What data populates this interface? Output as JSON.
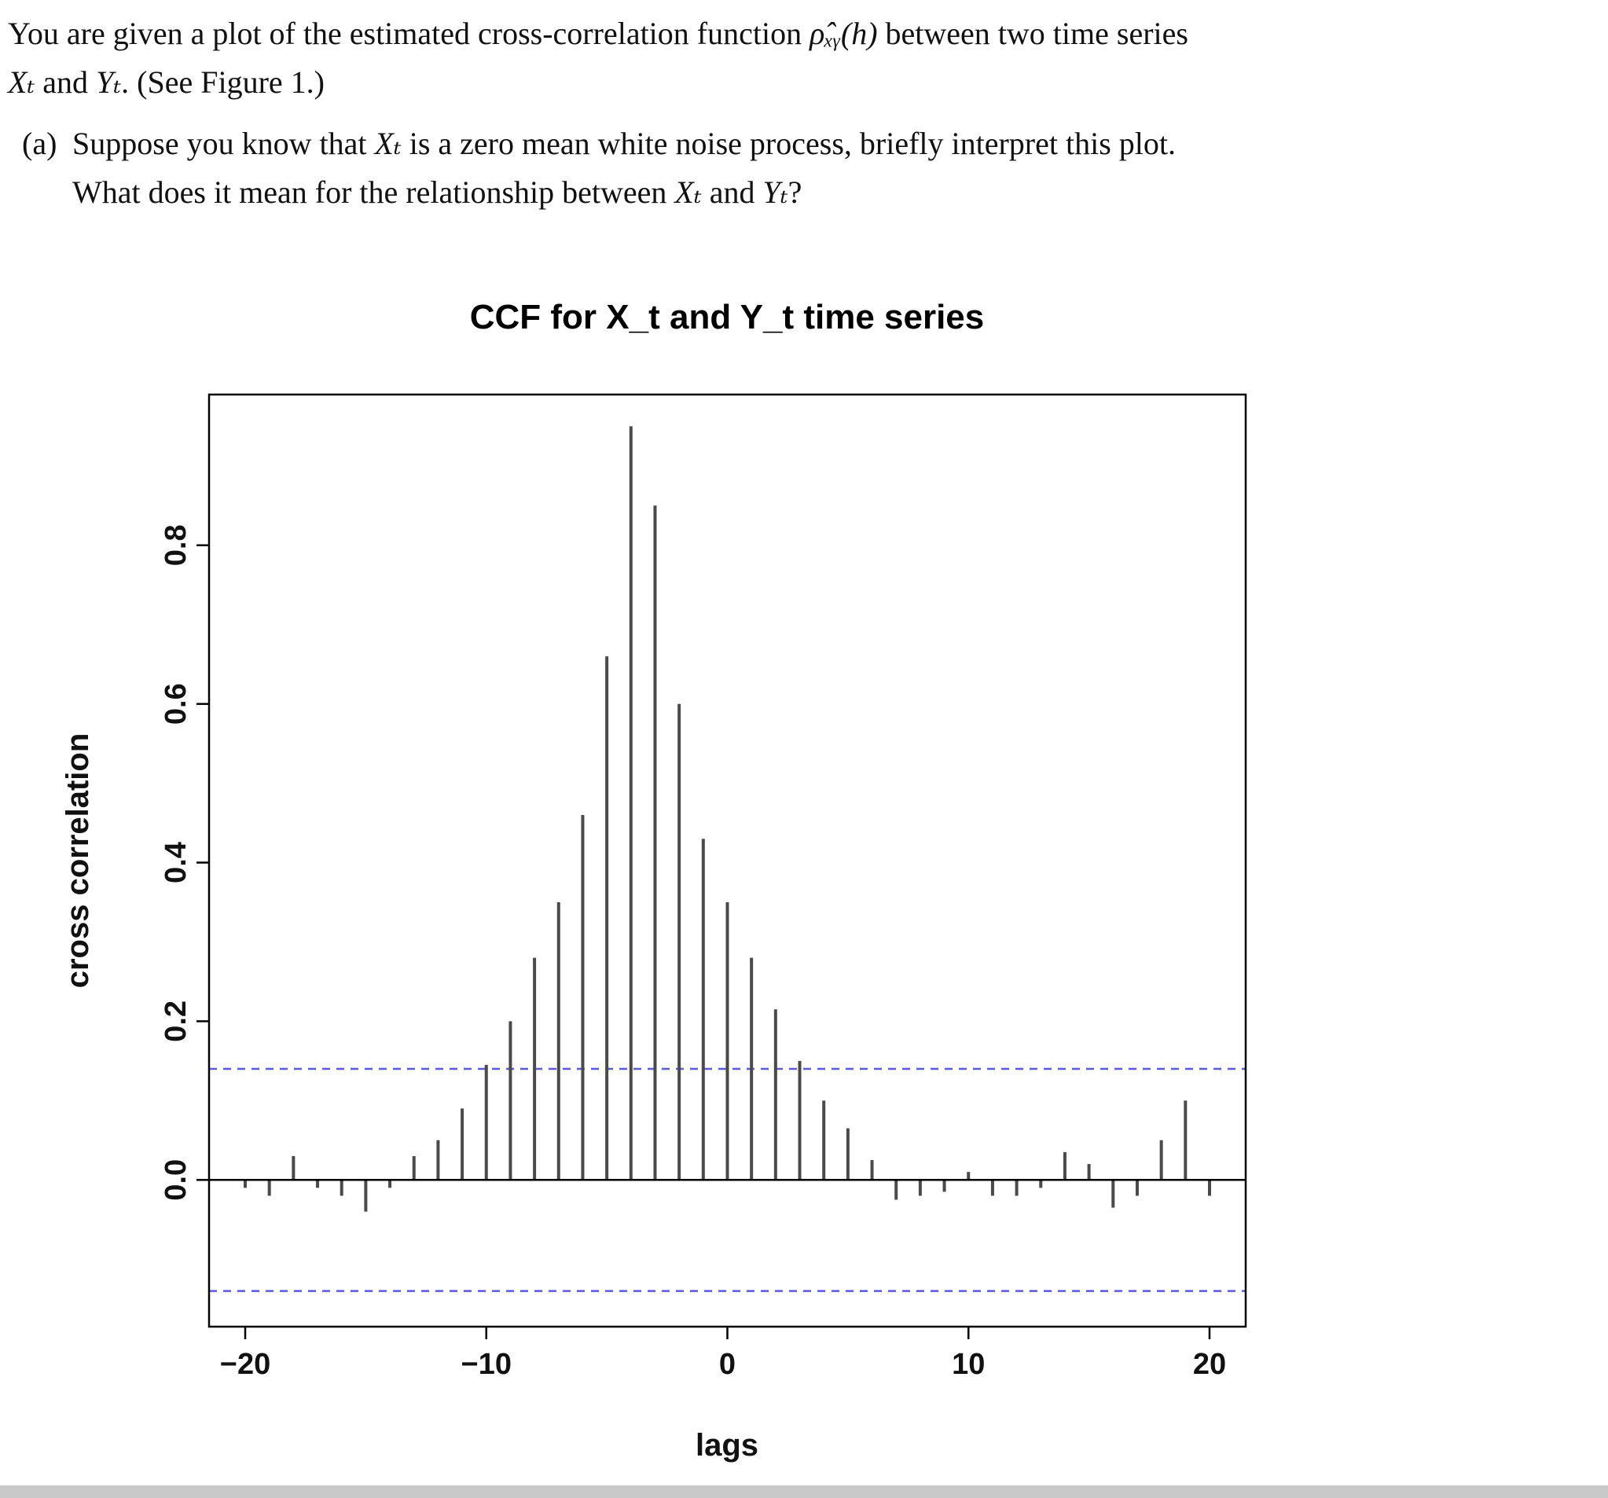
{
  "question": {
    "p1": {
      "s1": "You are given a plot of the estimated cross-correlation function ",
      "m1": "ρ̂ₓᵧ(h)",
      "s2": " between two time series",
      "m2": "Xₜ",
      "s3": " and ",
      "m3": "Yₜ",
      "s4": ". (See Figure 1.)"
    },
    "pa": {
      "label": "(a)",
      "s1": "Suppose you know that ",
      "m1": "Xₜ",
      "s2": " is a zero mean white noise process, briefly interpret this plot.",
      "s3": "What does it mean for the relationship between ",
      "m2": "Xₜ",
      "s4": " and ",
      "m3": "Yₜ",
      "s5": "?"
    }
  },
  "chart_data": {
    "type": "bar",
    "title": "CCF for X_t and Y_t time series",
    "xlabel": "lags",
    "ylabel": "cross correlation",
    "x": [
      -20,
      -19,
      -18,
      -17,
      -16,
      -15,
      -14,
      -13,
      -12,
      -11,
      -10,
      -9,
      -8,
      -7,
      -6,
      -5,
      -4,
      -3,
      -2,
      -1,
      0,
      1,
      2,
      3,
      4,
      5,
      6,
      7,
      8,
      9,
      10,
      11,
      12,
      13,
      14,
      15,
      16,
      17,
      18,
      19,
      20
    ],
    "values": [
      -0.01,
      -0.02,
      0.03,
      -0.01,
      -0.02,
      -0.04,
      -0.01,
      0.03,
      0.05,
      0.09,
      0.145,
      0.2,
      0.28,
      0.35,
      0.46,
      0.66,
      0.95,
      0.85,
      0.6,
      0.43,
      0.35,
      0.28,
      0.215,
      0.15,
      0.1,
      0.065,
      0.025,
      -0.025,
      -0.02,
      -0.015,
      0.01,
      -0.02,
      -0.02,
      -0.01,
      0.035,
      0.02,
      -0.035,
      -0.02,
      0.05,
      0.1,
      -0.02
    ],
    "xticks": [
      -20,
      -10,
      0,
      10,
      20
    ],
    "xtick_labels": [
      "−20",
      "−10",
      "0",
      "10",
      "20"
    ],
    "yticks": [
      0.0,
      0.2,
      0.4,
      0.6,
      0.8
    ],
    "ytick_labels": [
      "0.0",
      "0.2",
      "0.4",
      "0.6",
      "0.8"
    ],
    "xlim": [
      -21.5,
      21.5
    ],
    "ylim": [
      -0.185,
      0.99
    ],
    "confidence_level": 0.14,
    "colors": {
      "bar": "#4a4a4a",
      "confidence_line": "#5a5ae6",
      "axis": "#000000"
    },
    "grid": false,
    "legend": "none"
  }
}
